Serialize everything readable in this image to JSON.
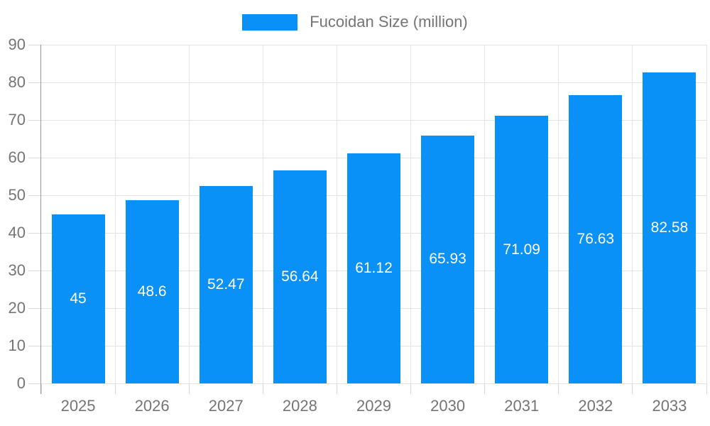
{
  "legend": {
    "label": "Fucoidan Size (million)"
  },
  "chart_data": {
    "type": "bar",
    "title": "",
    "categories": [
      "2025",
      "2026",
      "2027",
      "2028",
      "2029",
      "2030",
      "2031",
      "2032",
      "2033"
    ],
    "series": [
      {
        "name": "Fucoidan Size (million)",
        "values": [
          45,
          48.6,
          52.47,
          56.64,
          61.12,
          65.93,
          71.09,
          76.63,
          82.58
        ]
      }
    ],
    "value_labels": [
      "45",
      "48.6",
      "52.47",
      "56.64",
      "61.12",
      "65.93",
      "71.09",
      "76.63",
      "82.58"
    ],
    "xlabel": "",
    "ylabel": "",
    "ylim": [
      0,
      90
    ],
    "ytick_interval": 10,
    "ytick_labels": [
      "0",
      "10",
      "20",
      "30",
      "40",
      "50",
      "60",
      "70",
      "80",
      "90"
    ],
    "grid": true,
    "legend_position": "top-center",
    "colors": {
      "bar": "#0a91f7",
      "value_label": "#ffffff",
      "axis_label": "#757575",
      "legend_text": "#757575",
      "axis_line": "#999999",
      "grid_line": "#e4e4e4",
      "tick_line": "#d9d9d9",
      "background": "#ffffff"
    }
  }
}
